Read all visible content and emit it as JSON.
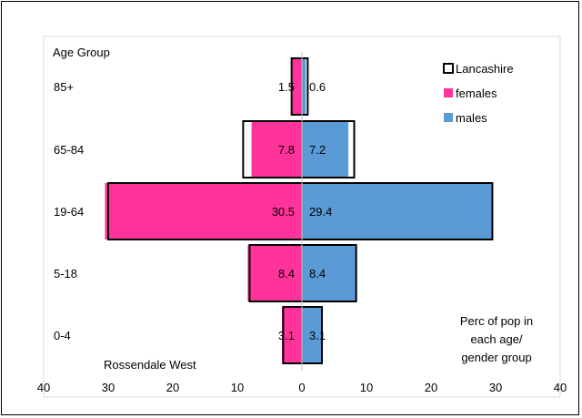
{
  "chart_data": {
    "type": "bar",
    "orientation": "horizontal",
    "layout": "population-pyramid",
    "categories": [
      "85+",
      "65-84",
      "19-64",
      "5-18",
      "0-4"
    ],
    "category_axis_title": "Age Group",
    "area_label": "Rossendale West",
    "note": "Perc of pop in each age/ gender group",
    "note_lines": [
      "Perc of pop in",
      "each age/",
      "gender group"
    ],
    "xlim": [
      -40,
      40
    ],
    "x_ticks": [
      -40,
      -30,
      -20,
      -10,
      0,
      10,
      20,
      30,
      40
    ],
    "x_tick_labels": [
      "40",
      "30",
      "20",
      "10",
      "0",
      "10",
      "20",
      "30",
      "40"
    ],
    "series": [
      {
        "name": "females",
        "side": "left",
        "color": "#ff3399",
        "values": [
          1.5,
          7.8,
          30.5,
          8.4,
          3.1
        ],
        "labels": [
          "1.5",
          "7.8",
          "30.5",
          "8.4",
          "3.1"
        ]
      },
      {
        "name": "males",
        "side": "right",
        "color": "#5b9bd5",
        "values": [
          0.6,
          7.2,
          29.4,
          8.4,
          3.1
        ],
        "labels": [
          "0.6",
          "7.2",
          "29.4",
          "8.4",
          "3.1"
        ]
      },
      {
        "name": "Lancashire",
        "style": "outline",
        "color": "#000000",
        "female_values": [
          1.6,
          9.1,
          30.0,
          8.1,
          2.9
        ],
        "male_values": [
          0.9,
          8.1,
          29.5,
          8.4,
          3.1
        ]
      }
    ],
    "legend": {
      "position": "top-right",
      "entries": [
        "Lancashire",
        "females",
        "males"
      ]
    },
    "grid": false
  }
}
